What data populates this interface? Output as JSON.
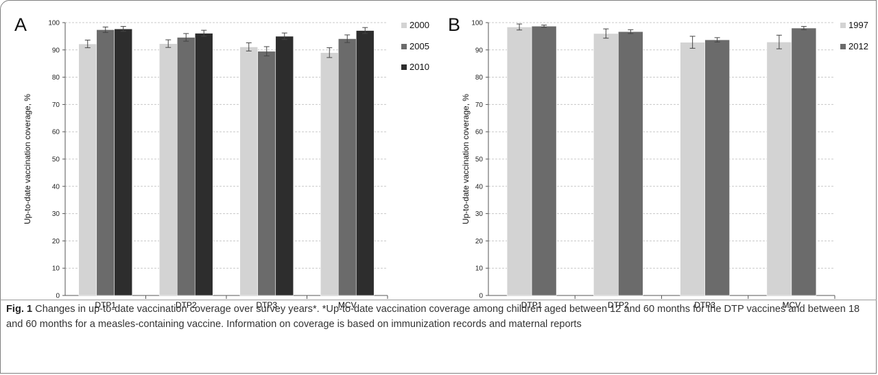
{
  "caption": {
    "label": "Fig. 1",
    "text": "Changes in up-to-date vaccination coverage over survey years*. *Up-to-date vaccination coverage among children aged between 12 and 60 months for the DTP vaccines and between 18 and 60 months for a measles-containing vaccine. Information on coverage is based on immunization records and maternal reports"
  },
  "colors": {
    "light": "#d3d3d3",
    "mid": "#6b6b6b",
    "dark": "#2d2d2d"
  },
  "chart_data": [
    {
      "panel": "A",
      "type": "bar",
      "categories": [
        "DTP1",
        "DTP2",
        "DTP3",
        "MCV"
      ],
      "ylabel": "Up-to-date vaccination coverage, %",
      "xlabel": "",
      "ylim": [
        0,
        100
      ],
      "yticks": [
        0,
        10,
        20,
        30,
        40,
        50,
        60,
        70,
        80,
        90,
        100
      ],
      "grid": true,
      "legend": "right",
      "series": [
        {
          "name": "2000",
          "color": "#d3d3d3",
          "values": [
            92.2,
            92.3,
            91.1,
            89.0
          ],
          "err": [
            1.4,
            1.4,
            1.5,
            1.8
          ]
        },
        {
          "name": "2005",
          "color": "#6b6b6b",
          "values": [
            97.4,
            94.6,
            89.5,
            94.1
          ],
          "err": [
            1.0,
            1.4,
            1.7,
            1.4
          ]
        },
        {
          "name": "2010",
          "color": "#2d2d2d",
          "values": [
            97.7,
            96.1,
            95.0,
            97.1
          ],
          "err": [
            0.9,
            1.1,
            1.2,
            1.1
          ]
        }
      ]
    },
    {
      "panel": "B",
      "type": "bar",
      "categories": [
        "DTP1",
        "DTP2",
        "DTP3",
        "MCV"
      ],
      "ylabel": "Up-to-date vaccination coverage, %",
      "xlabel": "",
      "ylim": [
        0,
        100
      ],
      "yticks": [
        0,
        10,
        20,
        30,
        40,
        50,
        60,
        70,
        80,
        90,
        100
      ],
      "grid": true,
      "legend": "right",
      "series": [
        {
          "name": "1997",
          "color": "#d3d3d3",
          "values": [
            98.4,
            96.0,
            92.8,
            92.9
          ],
          "err": [
            1.1,
            1.7,
            2.2,
            2.5
          ]
        },
        {
          "name": "2012",
          "color": "#6b6b6b",
          "values": [
            98.7,
            96.7,
            93.7,
            98.0
          ],
          "err": [
            0.4,
            0.7,
            0.8,
            0.6
          ]
        }
      ]
    }
  ]
}
